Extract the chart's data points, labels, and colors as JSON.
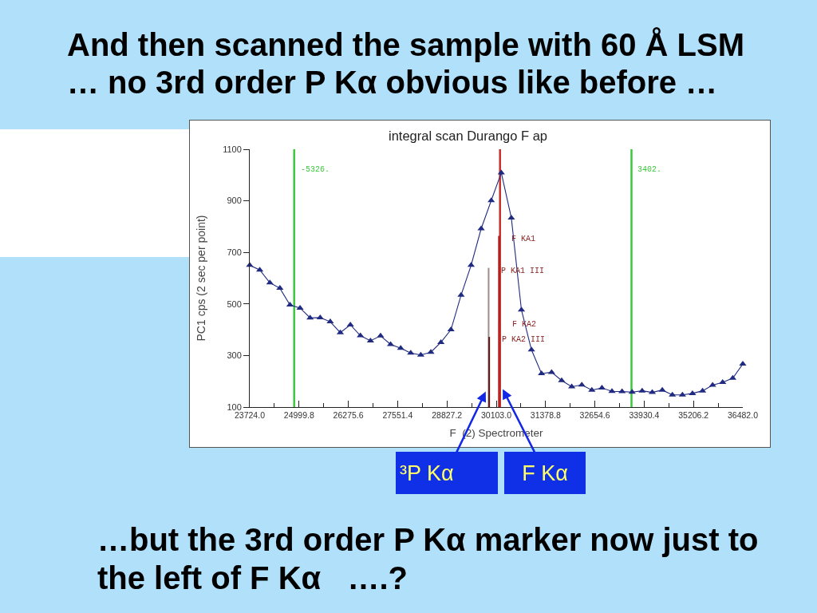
{
  "chart_data": {
    "type": "line",
    "title": "And then scanned the sample with 60 Å LSM\n… no 3rd order P Kα obvious like before …",
    "subtitle": "integral scan Durango F ap",
    "xlabel": "F  (2) Spectrometer",
    "ylabel": "PC1 cps (2 sec per point)",
    "xlim": [
      23724,
      36482
    ],
    "ylim": [
      100,
      1100
    ],
    "xticks": [
      {
        "value": 23724,
        "label": "23724.0"
      },
      {
        "value": 24361.9,
        "label": null
      },
      24999.8,
      {
        "value": 25637.7,
        "label": null
      },
      26275.6,
      {
        "value": 26913.5,
        "label": null
      },
      27551.4,
      {
        "value": 28189.3,
        "label": null
      },
      28827.2,
      {
        "value": 29465.1,
        "label": null
      },
      {
        "value": 30103,
        "label": "30103.0"
      },
      {
        "value": 30740.9,
        "label": null
      },
      31378.8,
      {
        "value": 32016.7,
        "label": null
      },
      32654.6,
      {
        "value": 33292.5,
        "label": null
      },
      33930.4,
      {
        "value": 34568.3,
        "label": null
      },
      35206.2,
      {
        "value": 35844.1,
        "label": null
      },
      {
        "value": 36482,
        "label": "36482.0"
      }
    ],
    "yticks": [
      100,
      300,
      500,
      700,
      900,
      1100
    ],
    "marker": "triangle",
    "series": [
      {
        "color": "#1f2a80",
        "x": [
          23724,
          23984,
          24245,
          24505,
          24765,
          25026,
          25286,
          25547,
          25807,
          26067,
          26328,
          26588,
          26848,
          27109,
          27369,
          27630,
          27890,
          28150,
          28411,
          28671,
          28931,
          29192,
          29452,
          29712,
          29973,
          30233,
          30493,
          30754,
          31014,
          31274,
          31535,
          31795,
          32056,
          32316,
          32576,
          32837,
          33097,
          33358,
          33618,
          33878,
          34139,
          34399,
          34660,
          34920,
          35180,
          35441,
          35701,
          35961,
          36222,
          36482
        ],
        "values": [
          650,
          632,
          582,
          561,
          496,
          484,
          446,
          447,
          431,
          389,
          419,
          377,
          357,
          376,
          343,
          328,
          310,
          302,
          313,
          351,
          400,
          534,
          650,
          792,
          901,
          1009,
          834,
          477,
          322,
          230,
          235,
          203,
          179,
          186,
          166,
          174,
          161,
          160,
          158,
          163,
          157,
          166,
          147,
          147,
          153,
          163,
          185,
          196,
          212,
          267
        ]
      },
      {
        "name": "P KA1 III",
        "color": "#a08a8a",
        "marker": "none",
        "x": [
          29905,
          29905
        ],
        "values": [
          100,
          640
        ]
      },
      {
        "name": "P KA2 III",
        "color": "#5c1414",
        "marker": "none",
        "x": [
          29920,
          29920
        ],
        "values": [
          100,
          372
        ]
      },
      {
        "name": "F KA1",
        "color": "#a81a1a",
        "marker": "none",
        "x": [
          30172,
          30172
        ],
        "values": [
          100,
          764
        ]
      },
      {
        "name": "F KA2",
        "color": "#b82424",
        "marker": "none",
        "x": [
          30182,
          30182
        ],
        "values": [
          100,
          431
        ]
      }
    ],
    "ref_lines": [
      {
        "axis": "x",
        "value": 24874,
        "color": "#3cc83c"
      },
      {
        "axis": "x",
        "value": 33602,
        "color": "#3cc83c"
      },
      {
        "axis": "x",
        "value": 30200,
        "color": "#c4302a"
      }
    ],
    "annotations": [
      {
        "text": "-5326.",
        "x": 24874,
        "y": 1020
      },
      {
        "text": "3402.",
        "x": 33602,
        "y": 1020
      },
      {
        "text": "³P Kα",
        "x": 29830,
        "y": 160
      },
      {
        "text": "F Kα",
        "x": 30270,
        "y": 170
      },
      "…but the 3rd order P Kα marker now just to\nthe left of F Kα   ….?"
    ]
  }
}
